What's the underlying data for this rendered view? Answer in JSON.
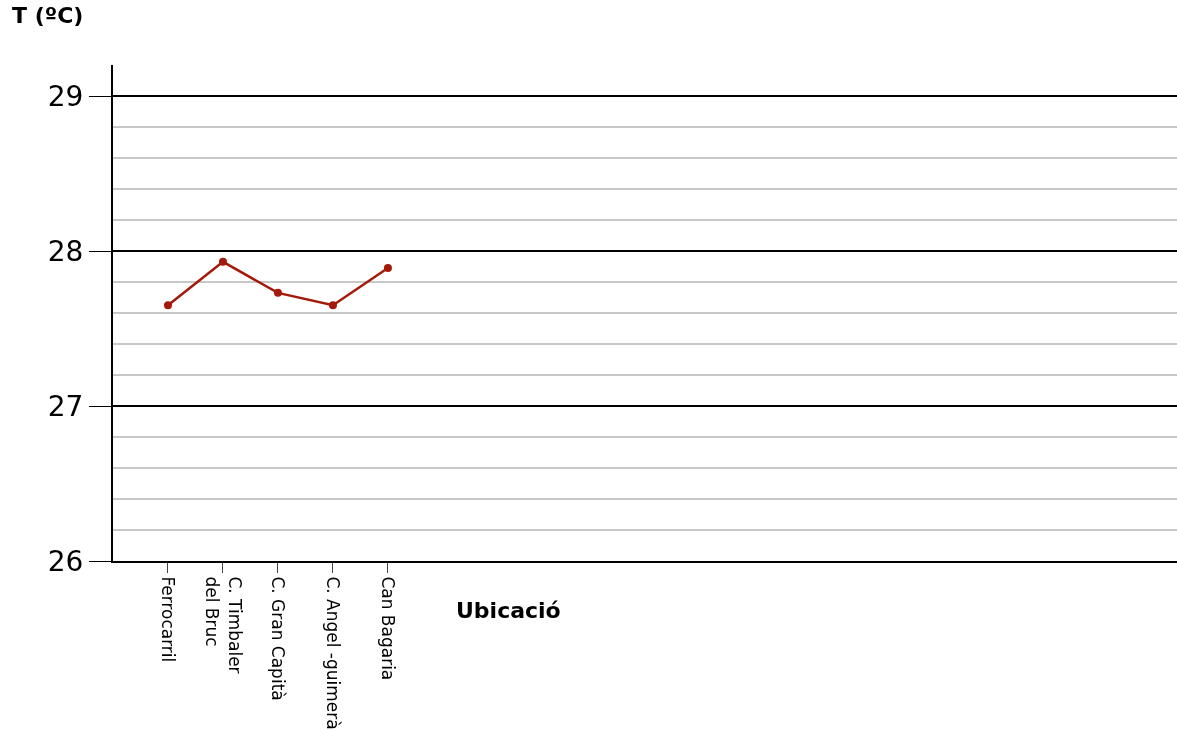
{
  "chart_data": {
    "type": "line",
    "ylabel": "T (ºC)",
    "xlabel": "Ubicació",
    "categories": [
      "Ferrocarril",
      "C. Timbaler\ndel Bruc",
      "C. Gran Capità",
      "C. Angel -guimerà",
      "Can Bagaria",
      null,
      null,
      null,
      null,
      null,
      null,
      null,
      null,
      null,
      null,
      null,
      null,
      null,
      null
    ],
    "series": [
      {
        "color": "#a31a0a",
        "values": [
          27.65,
          27.93,
          27.73,
          27.65,
          27.89,
          null,
          null,
          null,
          null,
          null,
          null,
          null,
          null,
          null,
          null,
          null,
          null,
          null,
          null
        ]
      }
    ],
    "ylim": [
      26,
      29.2
    ],
    "yticks": [
      26,
      {
        "value": 26.2,
        "label": null
      },
      {
        "value": 26.4,
        "label": null
      },
      {
        "value": 26.6,
        "label": null
      },
      {
        "value": 26.8,
        "label": null
      },
      27,
      {
        "value": 27.2,
        "label": null
      },
      {
        "value": 27.4,
        "label": null
      },
      {
        "value": 27.6,
        "label": null
      },
      {
        "value": 27.8,
        "label": null
      },
      28,
      {
        "value": 28.2,
        "label": null
      },
      {
        "value": 28.4,
        "label": null
      },
      {
        "value": 28.6,
        "label": null
      },
      {
        "value": 28.8,
        "label": null
      },
      29
    ],
    "grid": "y",
    "legend": false,
    "marker": "circle",
    "line_style": "solid"
  }
}
